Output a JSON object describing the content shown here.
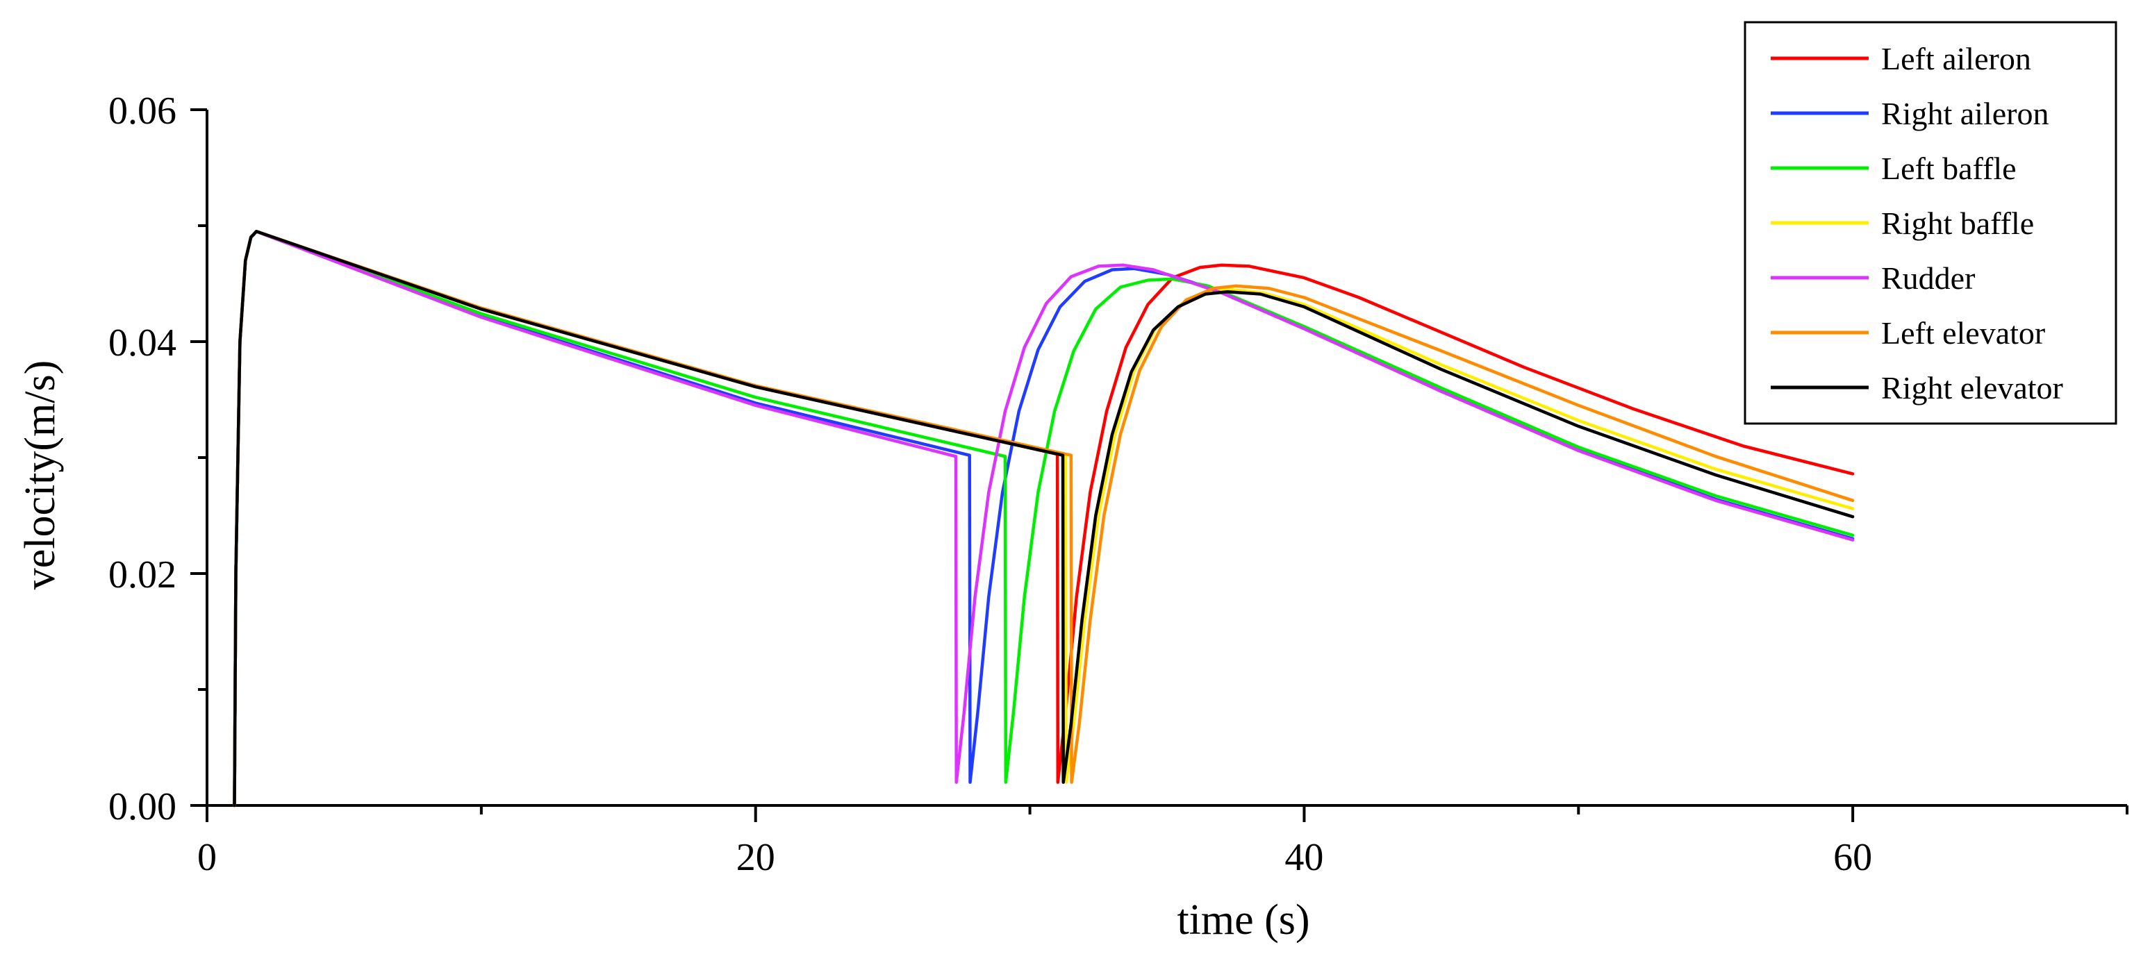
{
  "chart_data": {
    "type": "line",
    "title": "",
    "xlabel": "time (s)",
    "ylabel": "velocity(m/s)",
    "xlim": [
      0,
      70
    ],
    "ylim": [
      0,
      0.06
    ],
    "xticks": [
      0,
      20,
      40,
      60
    ],
    "xtick_labels": [
      "0",
      "20",
      "40",
      "60"
    ],
    "xminor": [
      10,
      30,
      50,
      70
    ],
    "yticks": [
      0,
      0.02,
      0.04,
      0.06
    ],
    "ytick_labels": [
      "0.00",
      "0.02",
      "0.04",
      "0.06"
    ],
    "yminor": [
      0.01,
      0.03,
      0.05
    ],
    "legend_position": "top-right",
    "series": [
      {
        "name": "Left aileron",
        "color": "#ff0000",
        "x": [
          1.0,
          1.05,
          1.2,
          1.4,
          1.6,
          1.8,
          10,
          20,
          31.0,
          31.0,
          31.02,
          31.3,
          31.7,
          32.2,
          32.8,
          33.5,
          34.3,
          35.2,
          36.2,
          37.0,
          38.0,
          40,
          42,
          45,
          48,
          52,
          56,
          60
        ],
        "y": [
          0.0,
          0.02,
          0.04,
          0.047,
          0.049,
          0.0495,
          0.0428,
          0.0361,
          0.0303,
          0.0302,
          0.002,
          0.008,
          0.018,
          0.027,
          0.034,
          0.0395,
          0.0432,
          0.0455,
          0.0464,
          0.0466,
          0.0465,
          0.0455,
          0.0438,
          0.0408,
          0.0378,
          0.0342,
          0.031,
          0.0286
        ]
      },
      {
        "name": "Right aileron",
        "color": "#1f3cff",
        "x": [
          1.0,
          1.05,
          1.2,
          1.4,
          1.6,
          1.8,
          10,
          20,
          27.8,
          27.8,
          27.82,
          28.1,
          28.5,
          29.0,
          29.6,
          30.3,
          31.1,
          32.0,
          33.0,
          33.8,
          35,
          37,
          40,
          45,
          50,
          55,
          60
        ],
        "y": [
          0.0,
          0.02,
          0.04,
          0.047,
          0.049,
          0.0495,
          0.0422,
          0.0347,
          0.0302,
          0.0301,
          0.002,
          0.008,
          0.018,
          0.027,
          0.034,
          0.0393,
          0.043,
          0.0452,
          0.0462,
          0.0463,
          0.0458,
          0.0443,
          0.0412,
          0.0358,
          0.0307,
          0.0264,
          0.023
        ]
      },
      {
        "name": "Left baffle",
        "color": "#00ee00",
        "x": [
          1.0,
          1.05,
          1.2,
          1.4,
          1.6,
          1.8,
          10,
          20,
          29.1,
          29.1,
          29.12,
          29.4,
          29.8,
          30.3,
          30.9,
          31.6,
          32.4,
          33.3,
          34.3,
          35.2,
          36.5,
          40,
          45,
          50,
          55,
          60
        ],
        "y": [
          0.0,
          0.02,
          0.04,
          0.047,
          0.049,
          0.0495,
          0.0424,
          0.0352,
          0.0301,
          0.03,
          0.002,
          0.008,
          0.018,
          0.027,
          0.034,
          0.0392,
          0.0428,
          0.0447,
          0.0453,
          0.0454,
          0.0448,
          0.0413,
          0.036,
          0.0309,
          0.0267,
          0.0233
        ]
      },
      {
        "name": "Right baffle",
        "color": "#ffee00",
        "x": [
          1.0,
          1.05,
          1.2,
          1.4,
          1.6,
          1.8,
          10,
          20,
          31.3,
          31.3,
          31.32,
          31.6,
          32.0,
          32.5,
          33.1,
          33.8,
          34.6,
          35.5,
          36.5,
          37.3,
          38.5,
          40,
          45,
          50,
          55,
          60
        ],
        "y": [
          0.0,
          0.02,
          0.04,
          0.047,
          0.049,
          0.0495,
          0.0428,
          0.0361,
          0.0302,
          0.0301,
          0.002,
          0.007,
          0.016,
          0.025,
          0.032,
          0.0375,
          0.0412,
          0.0432,
          0.0443,
          0.0445,
          0.0442,
          0.0432,
          0.038,
          0.0332,
          0.029,
          0.0256
        ]
      },
      {
        "name": "Rudder",
        "color": "#dd33ff",
        "x": [
          1.0,
          1.05,
          1.2,
          1.4,
          1.6,
          1.8,
          10,
          20,
          27.3,
          27.3,
          27.32,
          27.6,
          28.0,
          28.5,
          29.1,
          29.8,
          30.6,
          31.5,
          32.5,
          33.4,
          34.5,
          37,
          40,
          45,
          50,
          55,
          60
        ],
        "y": [
          0.0,
          0.02,
          0.04,
          0.047,
          0.049,
          0.0495,
          0.0421,
          0.0345,
          0.0301,
          0.03,
          0.002,
          0.008,
          0.018,
          0.027,
          0.034,
          0.0395,
          0.0433,
          0.0456,
          0.0465,
          0.0466,
          0.0462,
          0.0442,
          0.0411,
          0.0357,
          0.0306,
          0.0263,
          0.0229
        ]
      },
      {
        "name": "Left elevator",
        "color": "#ff8c00",
        "x": [
          1.0,
          1.05,
          1.2,
          1.4,
          1.6,
          1.8,
          10,
          20,
          31.5,
          31.5,
          31.52,
          31.8,
          32.2,
          32.7,
          33.3,
          34.0,
          34.8,
          35.7,
          36.7,
          37.5,
          38.7,
          40,
          45,
          50,
          55,
          60
        ],
        "y": [
          0.0,
          0.02,
          0.04,
          0.047,
          0.049,
          0.0495,
          0.0429,
          0.0362,
          0.0302,
          0.0301,
          0.002,
          0.007,
          0.016,
          0.025,
          0.032,
          0.0375,
          0.0413,
          0.0436,
          0.0446,
          0.0448,
          0.0446,
          0.0438,
          0.0392,
          0.0345,
          0.0301,
          0.0263
        ]
      },
      {
        "name": "Right elevator",
        "color": "#000000",
        "x": [
          1.0,
          1.05,
          1.2,
          1.4,
          1.6,
          1.8,
          10,
          20,
          31.2,
          31.2,
          31.22,
          31.5,
          31.9,
          32.4,
          33.0,
          33.7,
          34.5,
          35.4,
          36.4,
          37.2,
          38.4,
          40,
          45,
          50,
          55,
          60
        ],
        "y": [
          0.0,
          0.02,
          0.04,
          0.047,
          0.049,
          0.0495,
          0.0428,
          0.0361,
          0.0302,
          0.0301,
          0.002,
          0.007,
          0.016,
          0.025,
          0.032,
          0.0374,
          0.041,
          0.043,
          0.0441,
          0.0443,
          0.0441,
          0.043,
          0.0376,
          0.0327,
          0.0285,
          0.0249
        ]
      }
    ]
  }
}
